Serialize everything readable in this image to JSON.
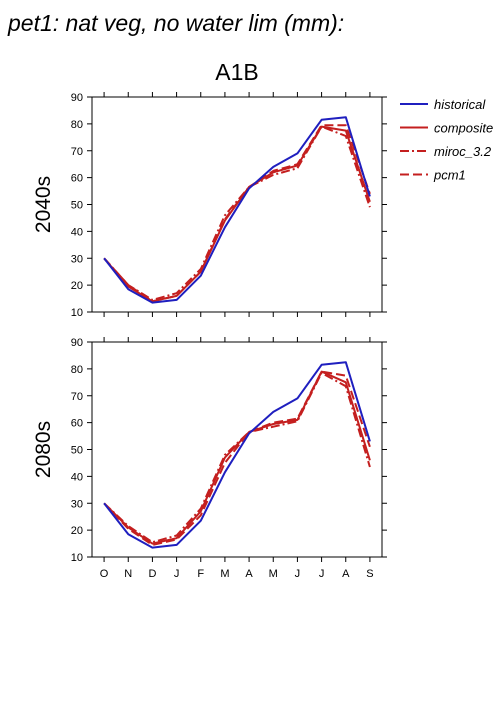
{
  "chart_data": {
    "type": "line",
    "title": "pet1: nat veg, no water lim (mm):",
    "subtitle": "A1B",
    "x": [
      "O",
      "N",
      "D",
      "J",
      "F",
      "M",
      "A",
      "M",
      "J",
      "J",
      "A",
      "S"
    ],
    "ylim": [
      10,
      90
    ],
    "yticks": [
      10,
      20,
      30,
      40,
      50,
      60,
      70,
      80,
      90
    ],
    "grid": false,
    "legend_position": "right",
    "legend": [
      {
        "name": "historical",
        "color": "#1f1fbf",
        "dash": "solid"
      },
      {
        "name": "composite",
        "color": "#c41f1f",
        "dash": "solid"
      },
      {
        "name": "miroc_3.2",
        "color": "#c41f1f",
        "dash": "dashdot"
      },
      {
        "name": "pcm1",
        "color": "#c41f1f",
        "dash": "dashed"
      }
    ],
    "panels": [
      {
        "label": "2040s",
        "series": [
          {
            "name": "historical",
            "values": [
              30,
              18.5,
              13.5,
              14.5,
              23.5,
              41.5,
              56,
              64,
              69,
              81.5,
              82.5,
              53
            ]
          },
          {
            "name": "composite",
            "values": [
              30,
              19.5,
              14,
              16,
              25,
              44,
              56.5,
              62,
              64.5,
              79,
              77.5,
              51
            ]
          },
          {
            "name": "miroc_3.2",
            "values": [
              30,
              20,
              14.5,
              17,
              26,
              46,
              56.5,
              61,
              63.5,
              79,
              75.5,
              49
            ]
          },
          {
            "name": "pcm1",
            "values": [
              30,
              20,
              14,
              16,
              25,
              44.5,
              56.5,
              62.5,
              65,
              79.5,
              79.5,
              54
            ]
          }
        ]
      },
      {
        "label": "2080s",
        "series": [
          {
            "name": "historical",
            "values": [
              30,
              18.5,
              13.5,
              14.5,
              23.5,
              41.5,
              56,
              64,
              69,
              81.5,
              82.5,
              53
            ]
          },
          {
            "name": "composite",
            "values": [
              30,
              21,
              15,
              17,
              27,
              47,
              56.5,
              59.5,
              61,
              79,
              75,
              46
            ]
          },
          {
            "name": "miroc_3.2",
            "values": [
              30,
              21.5,
              15.5,
              18,
              28,
              48,
              56.5,
              58.5,
              60.5,
              78.5,
              73.5,
              43.5
            ]
          },
          {
            "name": "pcm1",
            "values": [
              30,
              20.5,
              14.5,
              16.5,
              25.5,
              45,
              56.5,
              60,
              61.5,
              79,
              77.5,
              51
            ]
          }
        ]
      }
    ]
  }
}
